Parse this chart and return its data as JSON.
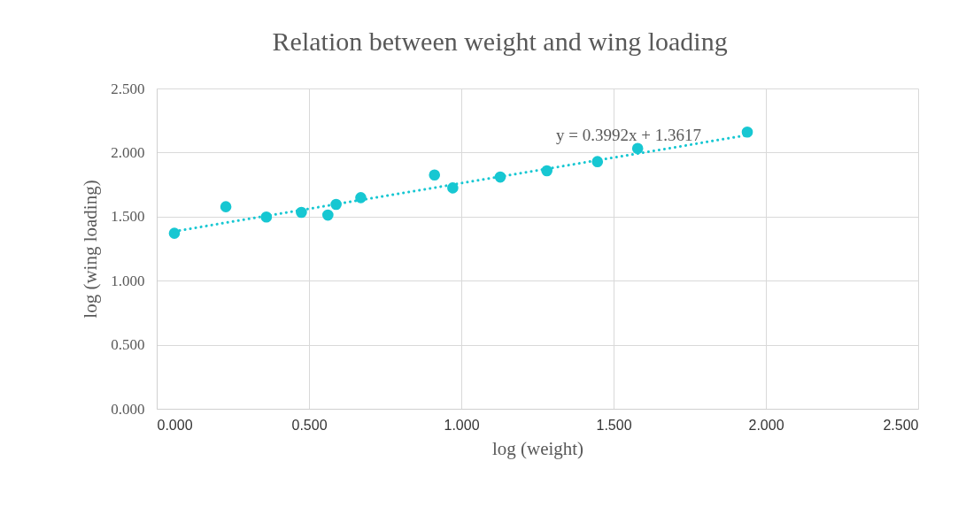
{
  "chart_data": {
    "type": "scatter",
    "title": "Relation between weight and wing loading",
    "xlabel": "log (weight)",
    "ylabel": "log (wing loading)",
    "xlim": [
      0,
      2.5
    ],
    "ylim": [
      0,
      2.5
    ],
    "xticks": [
      {
        "value": 0,
        "label": "0.000"
      },
      {
        "value": 0.5,
        "label": "0.500"
      },
      {
        "value": 1,
        "label": "1.000"
      },
      {
        "value": 1.5,
        "label": "1.500"
      },
      {
        "value": 2,
        "label": "2.000"
      },
      {
        "value": 2.5,
        "label": "2.500"
      }
    ],
    "yticks": [
      {
        "value": 0,
        "label": "0.000"
      },
      {
        "value": 0.5,
        "label": "0.500"
      },
      {
        "value": 1,
        "label": "1.000"
      },
      {
        "value": 1.5,
        "label": "1.500"
      },
      {
        "value": 2,
        "label": "2.000"
      },
      {
        "value": 2.5,
        "label": "2.500"
      }
    ],
    "grid": true,
    "series": [
      {
        "type": "scatter",
        "marker": "circle",
        "color": "#17c7d2",
        "x": [
          0.058,
          0.227,
          0.36,
          0.475,
          0.562,
          0.589,
          0.67,
          0.912,
          0.972,
          1.128,
          1.281,
          1.447,
          1.579,
          1.939
        ],
        "values": [
          1.37,
          1.577,
          1.497,
          1.533,
          1.512,
          1.595,
          1.648,
          1.825,
          1.724,
          1.809,
          1.858,
          1.929,
          2.032,
          2.16
        ]
      },
      {
        "type": "line",
        "line_style": "dotted",
        "color": "#17c7d2",
        "x": [
          0.058,
          1.939
        ],
        "values": [
          1.385,
          2.136
        ]
      }
    ],
    "annotations": [
      "y = 0.3992x + 1.3617"
    ]
  }
}
